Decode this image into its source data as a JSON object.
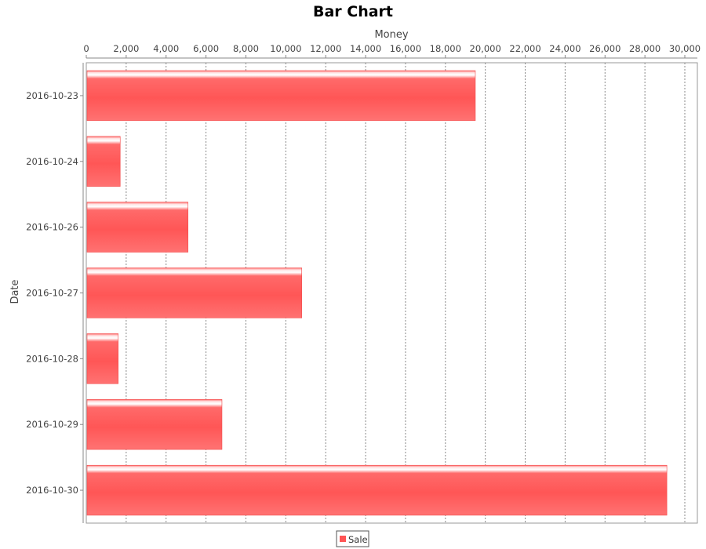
{
  "chart_data": {
    "type": "bar",
    "orientation": "horizontal",
    "title": "Bar Chart",
    "xlabel": "Money",
    "ylabel": "Date",
    "x_axis_position": "top",
    "xlim": [
      0,
      30000
    ],
    "x_ticks": [
      0,
      2000,
      4000,
      6000,
      8000,
      10000,
      12000,
      14000,
      16000,
      18000,
      20000,
      22000,
      24000,
      26000,
      28000,
      30000
    ],
    "x_tick_labels": [
      "0",
      "2,000",
      "4,000",
      "6,000",
      "8,000",
      "10,000",
      "12,000",
      "14,000",
      "16,000",
      "18,000",
      "20,000",
      "22,000",
      "24,000",
      "26,000",
      "28,000",
      "30,000"
    ],
    "grid": "vertical dashed",
    "categories": [
      "2016-10-23",
      "2016-10-24",
      "2016-10-26",
      "2016-10-27",
      "2016-10-28",
      "2016-10-29",
      "2016-10-30"
    ],
    "series": [
      {
        "name": "Sale",
        "color": "#ff5555",
        "values": [
          19500,
          1700,
          5100,
          10800,
          1600,
          6800,
          29100
        ]
      }
    ],
    "legend": {
      "position": "bottom-center",
      "entries": [
        "Sale"
      ]
    }
  }
}
